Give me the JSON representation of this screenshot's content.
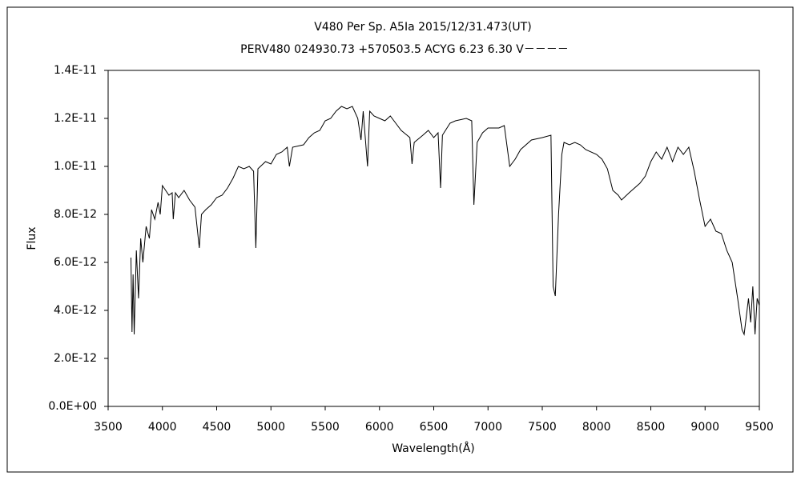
{
  "chart_data": {
    "type": "line",
    "title": "V480 Per   Sp. A5Ia   2015/12/31.473(UT)",
    "subtitle": "PERV480 024930.73 +570503.5 ACYG 6.23 6.30 V－－－－",
    "x_label": "Wavelength(Å)",
    "y_label": "Flux",
    "color": "#000000",
    "xlim": [
      3500,
      9500
    ],
    "xticks": [
      3500,
      4000,
      4500,
      5000,
      5500,
      6000,
      6500,
      7000,
      7500,
      8000,
      8500,
      9000,
      9500
    ],
    "ylim": [
      0,
      1.4e-11
    ],
    "yticks": [
      {
        "value": 0,
        "label": "0.0E+00"
      },
      {
        "value": 2e-12,
        "label": "2.0E-12"
      },
      {
        "value": 4e-12,
        "label": "4.0E-12"
      },
      {
        "value": 6e-12,
        "label": "6.0E-12"
      },
      {
        "value": 8e-12,
        "label": "8.0E-12"
      },
      {
        "value": 1e-11,
        "label": "1.0E-11"
      },
      {
        "value": 1.2e-11,
        "label": "1.2E-11"
      },
      {
        "value": 1.4e-11,
        "label": "1.4E-11"
      }
    ],
    "x": [
      3710,
      3720,
      3730,
      3740,
      3760,
      3780,
      3800,
      3820,
      3850,
      3880,
      3900,
      3930,
      3960,
      3980,
      4000,
      4030,
      4060,
      4090,
      4100,
      4120,
      4150,
      4200,
      4250,
      4300,
      4340,
      4360,
      4400,
      4450,
      4500,
      4550,
      4600,
      4650,
      4700,
      4750,
      4800,
      4840,
      4861,
      4880,
      4950,
      5000,
      5050,
      5100,
      5150,
      5170,
      5200,
      5300,
      5350,
      5400,
      5450,
      5500,
      5550,
      5600,
      5650,
      5700,
      5750,
      5800,
      5830,
      5850,
      5890,
      5910,
      5950,
      6000,
      6050,
      6100,
      6150,
      6200,
      6280,
      6300,
      6320,
      6400,
      6450,
      6500,
      6540,
      6563,
      6580,
      6650,
      6700,
      6800,
      6850,
      6870,
      6900,
      6950,
      7000,
      7100,
      7150,
      7200,
      7250,
      7300,
      7400,
      7500,
      7580,
      7600,
      7620,
      7650,
      7680,
      7700,
      7750,
      7800,
      7850,
      7900,
      8000,
      8050,
      8100,
      8150,
      8200,
      8230,
      8300,
      8400,
      8450,
      8500,
      8550,
      8600,
      8650,
      8700,
      8750,
      8800,
      8850,
      8900,
      8950,
      9000,
      9050,
      9100,
      9150,
      9200,
      9250,
      9300,
      9340,
      9360,
      9400,
      9420,
      9440,
      9460,
      9480,
      9500
    ],
    "values": [
      6.2e-12,
      3.1e-12,
      5.5e-12,
      3e-12,
      6.5e-12,
      4.5e-12,
      7e-12,
      6e-12,
      7.5e-12,
      7e-12,
      8.2e-12,
      7.8e-12,
      8.5e-12,
      8e-12,
      9.2e-12,
      9e-12,
      8.8e-12,
      8.9e-12,
      7.8e-12,
      8.9e-12,
      8.7e-12,
      9e-12,
      8.6e-12,
      8.3e-12,
      6.6e-12,
      8e-12,
      8.2e-12,
      8.4e-12,
      8.7e-12,
      8.8e-12,
      9.1e-12,
      9.5e-12,
      1e-11,
      9.9e-12,
      1e-11,
      9.8e-12,
      6.6e-12,
      9.9e-12,
      1.02e-11,
      1.01e-11,
      1.05e-11,
      1.06e-11,
      1.08e-11,
      1e-11,
      1.08e-11,
      1.09e-11,
      1.12e-11,
      1.14e-11,
      1.15e-11,
      1.19e-11,
      1.2e-11,
      1.23e-11,
      1.25e-11,
      1.24e-11,
      1.25e-11,
      1.2e-11,
      1.11e-11,
      1.23e-11,
      1e-11,
      1.23e-11,
      1.21e-11,
      1.2e-11,
      1.19e-11,
      1.21e-11,
      1.18e-11,
      1.15e-11,
      1.12e-11,
      1.01e-11,
      1.1e-11,
      1.13e-11,
      1.15e-11,
      1.12e-11,
      1.14e-11,
      9.1e-12,
      1.13e-11,
      1.18e-11,
      1.19e-11,
      1.2e-11,
      1.19e-11,
      8.4e-12,
      1.1e-11,
      1.14e-11,
      1.16e-11,
      1.16e-11,
      1.17e-11,
      1e-11,
      1.03e-11,
      1.07e-11,
      1.11e-11,
      1.12e-11,
      1.13e-11,
      5e-12,
      4.6e-12,
      8e-12,
      1.05e-11,
      1.1e-11,
      1.09e-11,
      1.1e-11,
      1.09e-11,
      1.07e-11,
      1.05e-11,
      1.03e-11,
      9.9e-12,
      9e-12,
      8.8e-12,
      8.6e-12,
      8.9e-12,
      9.3e-12,
      9.6e-12,
      1.02e-11,
      1.06e-11,
      1.03e-11,
      1.08e-11,
      1.02e-11,
      1.08e-11,
      1.05e-11,
      1.08e-11,
      9.8e-12,
      8.6e-12,
      7.5e-12,
      7.8e-12,
      7.3e-12,
      7.2e-12,
      6.5e-12,
      6e-12,
      4.5e-12,
      3.2e-12,
      3e-12,
      4.5e-12,
      3.5e-12,
      5e-12,
      3e-12,
      4.5e-12,
      4.2e-12
    ]
  }
}
